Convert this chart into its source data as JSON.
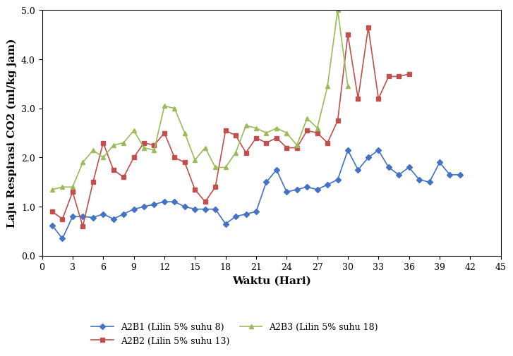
{
  "title": "",
  "xlabel": "Waktu (Hari)",
  "ylabel": "Laju Respirasi CO2 (ml/kg jam)",
  "xlim": [
    0,
    45
  ],
  "ylim": [
    0.0,
    5.0
  ],
  "xticks": [
    0,
    3,
    6,
    9,
    12,
    15,
    18,
    21,
    24,
    27,
    30,
    33,
    36,
    39,
    42,
    45
  ],
  "yticks": [
    0.0,
    1.0,
    2.0,
    3.0,
    4.0,
    5.0
  ],
  "series": [
    {
      "label": "A2B1 (Lilin 5% suhu 8)",
      "color": "#4472C4",
      "marker": "D",
      "markersize": 4,
      "x": [
        1,
        2,
        3,
        4,
        5,
        6,
        7,
        8,
        9,
        10,
        11,
        12,
        13,
        14,
        15,
        16,
        17,
        18,
        19,
        20,
        21,
        22,
        23,
        24,
        25,
        26,
        27,
        28,
        29,
        30,
        31,
        32,
        33,
        34,
        35,
        36,
        37,
        38,
        39,
        40,
        41
      ],
      "y": [
        0.62,
        0.35,
        0.8,
        0.8,
        0.78,
        0.85,
        0.75,
        0.85,
        0.95,
        1.0,
        1.05,
        1.1,
        1.1,
        1.0,
        0.95,
        0.95,
        0.95,
        0.65,
        0.8,
        0.85,
        0.9,
        1.5,
        1.75,
        1.3,
        1.35,
        1.4,
        1.35,
        1.45,
        1.55,
        2.15,
        1.75,
        2.0,
        2.15,
        1.8,
        1.65,
        1.8,
        1.55,
        1.5,
        1.9,
        1.65,
        1.65
      ]
    },
    {
      "label": "A2B2 (Lilin 5% suhu 13)",
      "color": "#C0504D",
      "marker": "s",
      "markersize": 5,
      "x": [
        1,
        2,
        3,
        4,
        5,
        6,
        7,
        8,
        9,
        10,
        11,
        12,
        13,
        14,
        15,
        16,
        17,
        18,
        19,
        20,
        21,
        22,
        23,
        24,
        25,
        26,
        27,
        28,
        29,
        30,
        31,
        32,
        33,
        34,
        35,
        36
      ],
      "y": [
        0.9,
        0.75,
        1.3,
        0.6,
        1.5,
        2.3,
        1.75,
        1.6,
        2.0,
        2.3,
        2.25,
        2.5,
        2.0,
        1.9,
        1.35,
        1.1,
        1.4,
        2.55,
        2.45,
        2.1,
        2.4,
        2.3,
        2.4,
        2.2,
        2.2,
        2.55,
        2.5,
        2.3,
        2.75,
        4.5,
        3.2,
        4.65,
        3.2,
        3.65,
        3.65,
        3.7
      ]
    },
    {
      "label": "A2B3 (Lilin 5% suhu 18)",
      "color": "#9BBB59",
      "marker": "^",
      "markersize": 5,
      "x": [
        1,
        2,
        3,
        4,
        5,
        6,
        7,
        8,
        9,
        10,
        11,
        12,
        13,
        14,
        15,
        16,
        17,
        18,
        19,
        20,
        21,
        22,
        23,
        24,
        25,
        26,
        27,
        28,
        29,
        30
      ],
      "y": [
        1.35,
        1.4,
        1.4,
        1.9,
        2.15,
        2.0,
        2.25,
        2.3,
        2.55,
        2.2,
        2.15,
        3.05,
        3.0,
        2.5,
        1.95,
        2.2,
        1.8,
        1.8,
        2.1,
        2.65,
        2.6,
        2.5,
        2.6,
        2.5,
        2.25,
        2.8,
        2.6,
        3.45,
        5.0,
        3.45
      ]
    }
  ],
  "background_color": "#ffffff"
}
